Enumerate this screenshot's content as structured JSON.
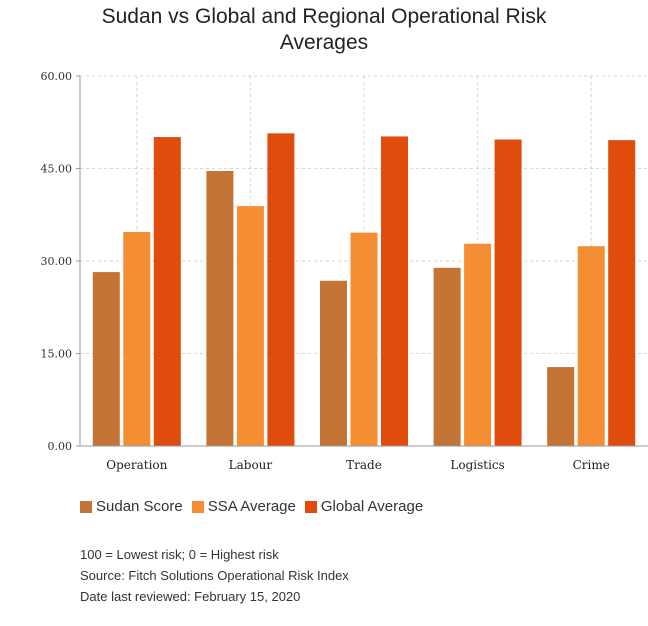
{
  "chart_data": {
    "type": "bar",
    "title": "Sudan vs Global and Regional Operational Risk Averages",
    "title_lines": [
      "Sudan vs Global and Regional Operational Risk",
      "Averages"
    ],
    "categories": [
      "Operation",
      "Labour",
      "Trade",
      "Logistics",
      "Crime"
    ],
    "series": [
      {
        "name": "Sudan Score",
        "color": "#c47535",
        "values": [
          28.2,
          44.6,
          26.8,
          28.9,
          12.8
        ]
      },
      {
        "name": "SSA Average",
        "color": "#f58d33",
        "values": [
          34.7,
          38.9,
          34.6,
          32.8,
          32.4
        ]
      },
      {
        "name": "Global Average",
        "color": "#e04c0c",
        "values": [
          50.1,
          50.7,
          50.2,
          49.7,
          49.6
        ]
      }
    ],
    "ylim": [
      0,
      60
    ],
    "yticks": [
      "0.00",
      "15.00",
      "30.00",
      "45.00",
      "60.00"
    ],
    "ytick_values": [
      0,
      15,
      30,
      45,
      60
    ],
    "xlabel": "",
    "ylabel": "",
    "grid": true,
    "legend_position": "bottom-left",
    "notes": [
      "100 = Lowest risk; 0 = Highest risk",
      "Source: Fitch Solutions Operational Risk Index",
      "Date last reviewed: February 15, 2020"
    ]
  }
}
